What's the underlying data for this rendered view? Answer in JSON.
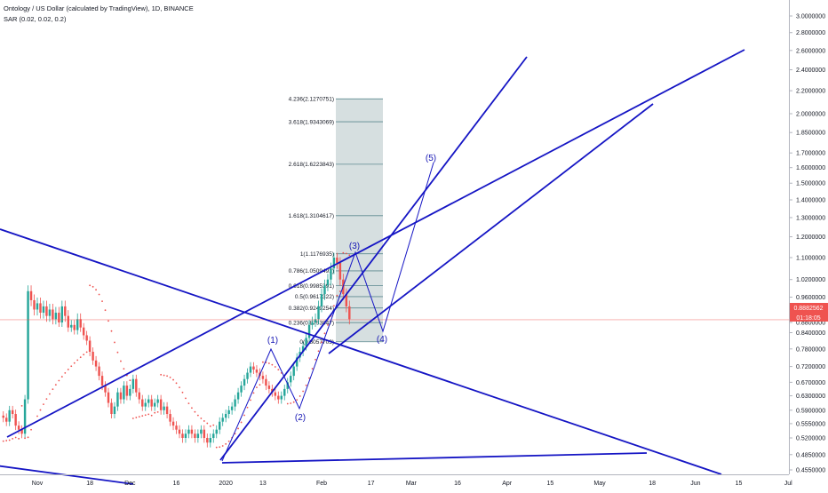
{
  "header": {
    "title": "Ontology / US Dollar (calculated by TradingView), 1D, BINANCE",
    "indicator": "SAR (0.02, 0.02, 0.2)"
  },
  "price_badges": {
    "last_price": "0.8882562",
    "countdown": "01:18:05"
  },
  "colors": {
    "up": "#26a69a",
    "down": "#ef5350",
    "sar": "#ef5350",
    "trendline": "#1515c4",
    "fib_box": "#c8d4d6",
    "fib_line": "#5d8a90",
    "last_price_line": "#ef5350"
  },
  "chart_data": {
    "type": "candlestick",
    "y_scale": "log",
    "y_ticks": [
      "3.0000000",
      "2.8000000",
      "2.6000000",
      "2.4000000",
      "2.2000000",
      "2.0000000",
      "1.8500000",
      "1.7000000",
      "1.6000000",
      "1.5000000",
      "1.4000000",
      "1.3000000",
      "1.2000000",
      "1.1000000",
      "1.0200000",
      "0.9600000",
      "0.8800000",
      "0.8400000",
      "0.7800000",
      "0.7200000",
      "0.6700000",
      "0.6300000",
      "0.5900000",
      "0.5550000",
      "0.5200000",
      "0.4850000",
      "0.4550000"
    ],
    "x_ticks": [
      "Nov",
      "18",
      "Dec",
      "16",
      "2020",
      "13",
      "Feb",
      "17",
      "Mar",
      "16",
      "Apr",
      "15",
      "May",
      "18",
      "Jun",
      "15",
      "Jul"
    ],
    "x_tick_dates": [
      "2019-11-01",
      "2019-11-18",
      "2019-12-01",
      "2019-12-16",
      "2020-01-01",
      "2020-01-13",
      "2020-02-01",
      "2020-02-17",
      "2020-03-01",
      "2020-03-16",
      "2020-04-01",
      "2020-04-15",
      "2020-05-01",
      "2020-05-18",
      "2020-06-01",
      "2020-06-15",
      "2020-07-01"
    ],
    "date_start": "2019-10-21",
    "closes": [
      0.57,
      0.56,
      0.59,
      0.58,
      0.55,
      0.54,
      0.53,
      0.62,
      0.98,
      0.95,
      0.92,
      0.94,
      0.91,
      0.93,
      0.9,
      0.92,
      0.89,
      0.91,
      0.88,
      0.93,
      0.9,
      0.86,
      0.87,
      0.85,
      0.89,
      0.86,
      0.83,
      0.81,
      0.77,
      0.74,
      0.72,
      0.69,
      0.66,
      0.64,
      0.61,
      0.58,
      0.6,
      0.64,
      0.62,
      0.66,
      0.63,
      0.65,
      0.68,
      0.64,
      0.62,
      0.6,
      0.61,
      0.62,
      0.6,
      0.61,
      0.62,
      0.59,
      0.6,
      0.58,
      0.56,
      0.55,
      0.54,
      0.53,
      0.52,
      0.53,
      0.54,
      0.53,
      0.52,
      0.53,
      0.54,
      0.52,
      0.51,
      0.52,
      0.53,
      0.54,
      0.56,
      0.57,
      0.58,
      0.59,
      0.6,
      0.62,
      0.64,
      0.66,
      0.68,
      0.7,
      0.72,
      0.71,
      0.7,
      0.69,
      0.68,
      0.66,
      0.65,
      0.64,
      0.63,
      0.62,
      0.63,
      0.65,
      0.67,
      0.69,
      0.72,
      0.75,
      0.77,
      0.79,
      0.82,
      0.87,
      0.88,
      0.89,
      0.93,
      0.97,
      1.0,
      1.02,
      1.06,
      1.1,
      1.08,
      1.02,
      0.97,
      0.93,
      0.89
    ],
    "fib_levels": [
      {
        "label": "0(0.8057703)",
        "value": 0.8057703
      },
      {
        "label": "0.236(0.8793847)",
        "value": 0.8793847
      },
      {
        "label": "0.382(0.9249254)",
        "value": 0.9249254
      },
      {
        "label": "0.5(0.9617322)",
        "value": 0.9617322
      },
      {
        "label": "0.618(0.9985391)",
        "value": 0.9985391
      },
      {
        "label": "0.786(1.0509491)",
        "value": 1.0509491
      },
      {
        "label": "1(1.1176935)",
        "value": 1.1176935
      },
      {
        "label": "1.618(1.3104617)",
        "value": 1.3104617
      },
      {
        "label": "2.618(1.6223843)",
        "value": 1.6223843
      },
      {
        "label": "3.618(1.9343069)",
        "value": 1.9343069
      },
      {
        "label": "4.236(2.1270751)",
        "value": 2.1270751
      }
    ],
    "wave_labels": [
      "(1)",
      "(2)",
      "(3)",
      "(4)",
      "(5)"
    ],
    "last_price": 0.8882562
  }
}
